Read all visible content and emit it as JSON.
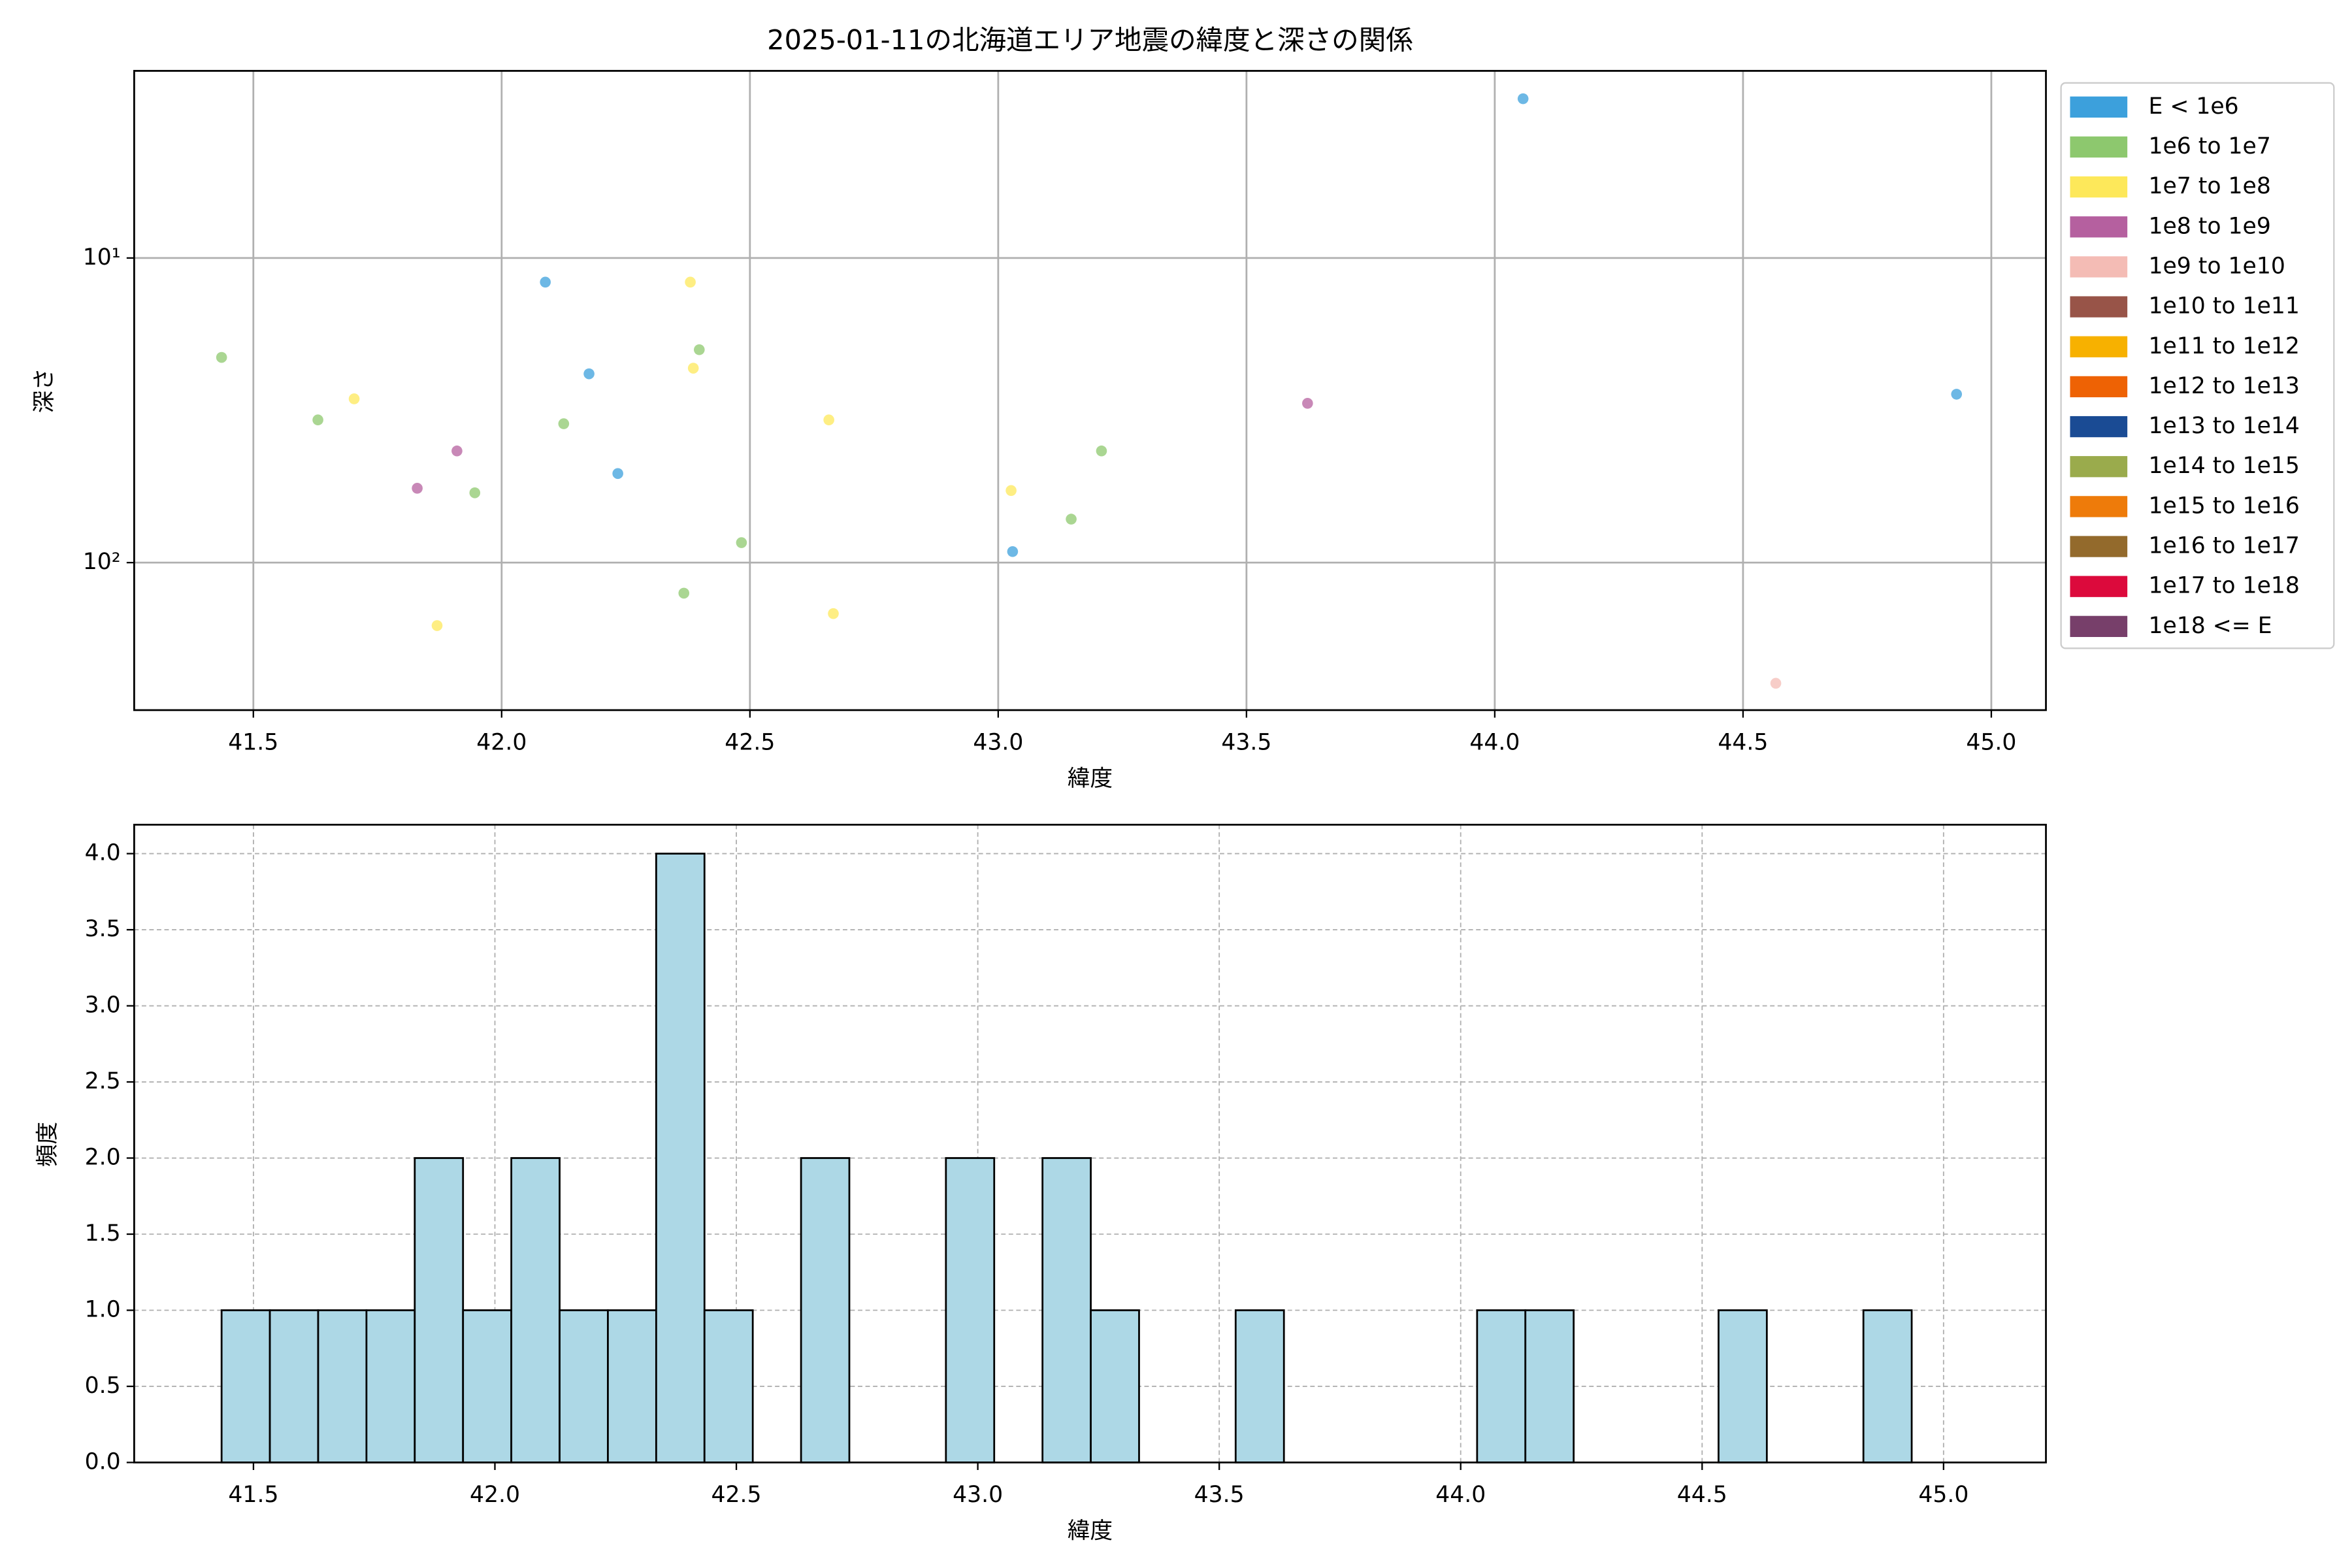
{
  "chart_data": [
    {
      "type": "scatter",
      "title": "2025-01-11の北海道エリア地震の緯度と深さの関係",
      "x_label": "緯度",
      "y_label": "深さ",
      "yscale": "log",
      "grid": true,
      "grid_style": "solid",
      "legend": "outside-upper-right",
      "xlim": [
        41.26,
        45.11
      ],
      "ylim": [
        305,
        2.43
      ],
      "xticks": [
        {
          "value": 41.5,
          "label": "41.5"
        },
        {
          "value": 42,
          "label": "42.0"
        },
        {
          "value": 42.5,
          "label": "42.5"
        },
        {
          "value": 43,
          "label": "43.0"
        },
        {
          "value": 43.5,
          "label": "43.5"
        },
        {
          "value": 44,
          "label": "44.0"
        },
        {
          "value": 44.5,
          "label": "44.5"
        },
        {
          "value": 45,
          "label": "45.0"
        }
      ],
      "yticks": [
        {
          "value": 10,
          "label": "10¹"
        },
        {
          "value": 100,
          "label": "10²"
        }
      ],
      "series": [
        {
          "name": "E < 1e6",
          "color": "#3ca0dc",
          "x": [
            42.088,
            42.176,
            42.234,
            43.029,
            44.057,
            44.93
          ],
          "values": [
            12,
            24,
            51,
            92,
            3.0,
            28
          ]
        },
        {
          "name": "1e6 to 1e7",
          "color": "#8dc86e",
          "x": [
            41.436,
            41.63,
            42.125,
            41.946,
            42.398,
            42.483,
            42.367,
            43.147,
            43.208
          ],
          "values": [
            21.2,
            34,
            35,
            59,
            20,
            86,
            126,
            72,
            43
          ]
        },
        {
          "name": "1e7 to 1e8",
          "color": "#fde85a",
          "x": [
            41.703,
            42.38,
            42.386,
            42.659,
            41.87,
            42.668,
            43.026
          ],
          "values": [
            29,
            12,
            23,
            34,
            161,
            147,
            58
          ]
        },
        {
          "name": "1e8 to 1e9",
          "color": "#b5609f",
          "x": [
            41.83,
            41.91,
            43.623
          ],
          "values": [
            57,
            43,
            30
          ]
        },
        {
          "name": "1e9 to 1e10",
          "color": "#f4bcb5",
          "x": [
            44.566
          ],
          "values": [
            249
          ]
        },
        {
          "name": "1e10 to 1e11",
          "color": "#985448",
          "x": [],
          "values": []
        },
        {
          "name": "1e11 to 1e12",
          "color": "#f7b100",
          "x": [],
          "values": []
        },
        {
          "name": "1e12 to 1e13",
          "color": "#ee6204",
          "x": [],
          "values": []
        },
        {
          "name": "1e13 to 1e14",
          "color": "#1a4b94",
          "x": [],
          "values": []
        },
        {
          "name": "1e14 to 1e15",
          "color": "#9aab4c",
          "x": [],
          "values": []
        },
        {
          "name": "1e15 to 1e16",
          "color": "#ee7b0a",
          "x": [],
          "values": []
        },
        {
          "name": "1e16 to 1e17",
          "color": "#936a2c",
          "x": [],
          "values": []
        },
        {
          "name": "1e17 to 1e18",
          "color": "#dc0a3c",
          "x": [],
          "values": []
        },
        {
          "name": "1e18 <= E",
          "color": "#773f6a",
          "x": [],
          "values": []
        }
      ]
    },
    {
      "type": "histogram",
      "x_label": "緯度",
      "y_label": "頻度",
      "color": "#add8e6",
      "edge_color": "#000000",
      "grid": true,
      "grid_style": "dashed",
      "xlim": [
        41.253,
        45.212
      ],
      "ylim": [
        0,
        4.19
      ],
      "xticks": [
        {
          "value": 41.5,
          "label": "41.5"
        },
        {
          "value": 42,
          "label": "42.0"
        },
        {
          "value": 42.5,
          "label": "42.5"
        },
        {
          "value": 43,
          "label": "43.0"
        },
        {
          "value": 43.5,
          "label": "43.5"
        },
        {
          "value": 44,
          "label": "44.0"
        },
        {
          "value": 44.5,
          "label": "44.5"
        },
        {
          "value": 45,
          "label": "45.0"
        }
      ],
      "yticks": [
        {
          "value": 0,
          "label": "0.0"
        },
        {
          "value": 0.5,
          "label": "0.5"
        },
        {
          "value": 1,
          "label": "1.0"
        },
        {
          "value": 1.5,
          "label": "1.5"
        },
        {
          "value": 2,
          "label": "2.0"
        },
        {
          "value": 2.5,
          "label": "2.5"
        },
        {
          "value": 3,
          "label": "3.0"
        },
        {
          "value": 3.5,
          "label": "3.5"
        },
        {
          "value": 4,
          "label": "4.0"
        }
      ],
      "bins": [
        41.434,
        41.534,
        41.634,
        41.734,
        41.834,
        41.934,
        42.034,
        42.134,
        42.234,
        42.334,
        42.434,
        42.534,
        42.634,
        42.734,
        42.834,
        42.934,
        43.034,
        43.134,
        43.234,
        43.334,
        43.434,
        43.534,
        43.634,
        43.734,
        43.834,
        43.934,
        44.034,
        44.134,
        44.234,
        44.334,
        44.434,
        44.534,
        44.634,
        44.734,
        44.834,
        44.934
      ],
      "values": [
        1,
        1,
        1,
        1,
        2,
        1,
        2,
        1,
        1,
        4,
        1,
        0,
        2,
        0,
        0,
        2,
        0,
        2,
        1,
        0,
        0,
        1,
        0,
        0,
        0,
        0,
        1,
        1,
        0,
        0,
        0,
        1,
        0,
        0,
        1
      ]
    }
  ]
}
